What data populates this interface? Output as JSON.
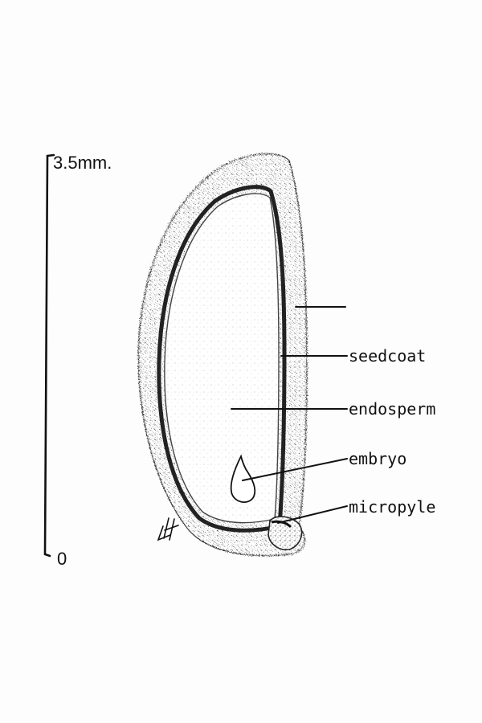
{
  "scale": {
    "top_label": "3.5mm.",
    "bottom_label": "0"
  },
  "labels": {
    "outer": "",
    "seedcoat": "seedcoat",
    "endosperm": "endosperm",
    "embryo": "embryo",
    "micropyle": "micropyle"
  },
  "colors": {
    "ink": "#111111",
    "stipple": "#6f6f6f",
    "paper": "#fdfdfd"
  }
}
